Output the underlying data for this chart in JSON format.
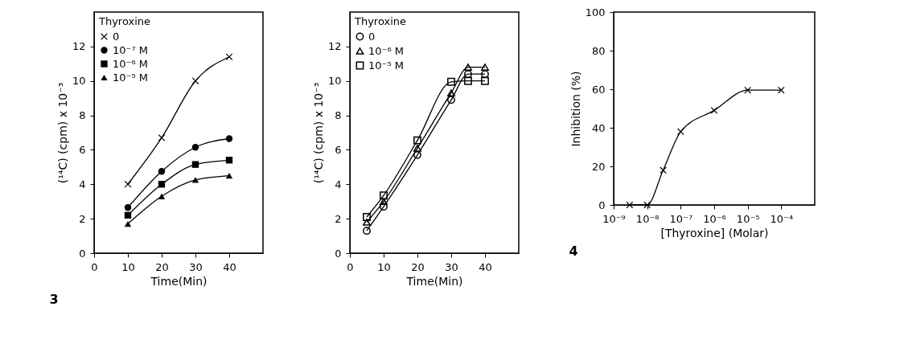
{
  "chart_data": [
    {
      "type": "line",
      "xlabel": "Time(Min)",
      "ylabel": "(¹⁴C)  (cpm) x 10⁻³",
      "legend_title": "Thyroxine",
      "legend": "top left",
      "annotations": [
        "3"
      ],
      "x": [
        10,
        20,
        30,
        40
      ],
      "xlim": [
        0,
        50
      ],
      "xticks": [
        0,
        10,
        20,
        30,
        40
      ],
      "ylim": [
        0,
        14
      ],
      "yticks": [
        0,
        2,
        4,
        6,
        8,
        10,
        12
      ],
      "grid": false,
      "series": [
        {
          "name": "0",
          "color": "#000000",
          "marker": "cross",
          "values": [
            4.0,
            6.7,
            10.0,
            11.4
          ]
        },
        {
          "name": "10⁻⁷ M",
          "color": "#000000",
          "marker": "circle",
          "values": [
            2.65,
            4.75,
            6.15,
            6.65
          ]
        },
        {
          "name": "10⁻⁶ M",
          "color": "#000000",
          "marker": "square",
          "values": [
            2.2,
            4.0,
            5.15,
            5.4
          ]
        },
        {
          "name": "10⁻⁵ M",
          "color": "#000000",
          "marker": "triangle",
          "values": [
            1.7,
            3.3,
            4.25,
            4.5
          ]
        }
      ]
    },
    {
      "type": "line",
      "xlabel": "Time(Min)",
      "ylabel": "(¹⁴C)  (cpm) x 10⁻³",
      "legend_title": "Thyroxine",
      "legend": "top left",
      "x": [
        5,
        10,
        20,
        30,
        35,
        40
      ],
      "xlim": [
        0,
        50
      ],
      "xticks": [
        0,
        10,
        20,
        30,
        40
      ],
      "ylim": [
        0,
        14
      ],
      "yticks": [
        0,
        2,
        4,
        6,
        8,
        10,
        12
      ],
      "grid": false,
      "series": [
        {
          "name": "0",
          "color": "#000000",
          "marker": "circle",
          "values": [
            1.3,
            2.7,
            5.7,
            8.9,
            10.4,
            10.4
          ]
        },
        {
          "name": "10⁻⁶ M",
          "color": "#000000",
          "marker": "triangle",
          "values": [
            1.8,
            3.0,
            6.1,
            9.3,
            10.8,
            10.8
          ]
        },
        {
          "name": "10⁻⁵ M",
          "color": "#000000",
          "marker": "square",
          "values": [
            2.1,
            3.35,
            6.55,
            9.95,
            10.0,
            10.0
          ]
        }
      ]
    },
    {
      "type": "line",
      "xlabel": "[Thyroxine] (Molar)",
      "ylabel": "Inhibition (%)",
      "annotations": [
        "4"
      ],
      "log": "x",
      "marker": "cross",
      "grid": false,
      "x": [
        3e-09,
        1e-08,
        3e-08,
        1e-07,
        1e-06,
        1e-05,
        0.0001
      ],
      "xlim": [
        1e-09,
        0.001
      ],
      "xticks": [
        {
          "value": 1e-09,
          "label": "10⁻⁹"
        },
        {
          "value": 1e-08,
          "label": "10⁻⁸"
        },
        {
          "value": 1e-07,
          "label": "10⁻⁷"
        },
        {
          "value": 1e-06,
          "label": "10⁻⁶"
        },
        {
          "value": 1e-05,
          "label": "10⁻⁵"
        },
        {
          "value": 0.0001,
          "label": "10⁻⁴"
        }
      ],
      "ylim": [
        0,
        100
      ],
      "yticks": [
        0,
        20,
        40,
        60,
        80,
        100
      ],
      "series": [
        {
          "color": "#000000",
          "values": [
            0,
            0,
            18,
            38,
            49,
            59.5,
            59.5
          ]
        }
      ]
    }
  ]
}
